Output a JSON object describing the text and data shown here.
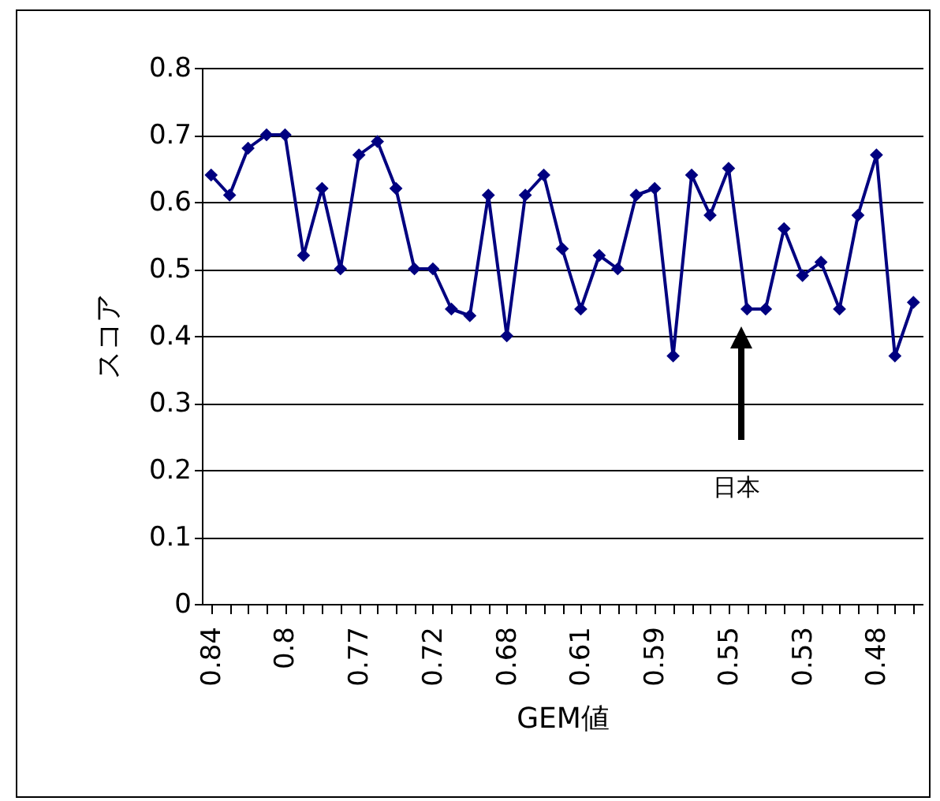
{
  "chart_data": {
    "type": "line",
    "xlabel": "GEM値",
    "ylabel": "スコア",
    "categories": [
      "0.84",
      null,
      null,
      null,
      "0.8",
      null,
      null,
      null,
      "0.77",
      null,
      null,
      null,
      "0.72",
      null,
      null,
      null,
      "0.68",
      null,
      null,
      null,
      "0.61",
      null,
      null,
      null,
      "0.59",
      null,
      null,
      null,
      "0.55",
      null,
      null,
      null,
      "0.53",
      null,
      null,
      null,
      "0.48",
      null,
      null
    ],
    "series": [
      {
        "color": "#000080",
        "values": [
          0.64,
          0.61,
          0.68,
          0.7,
          0.7,
          0.52,
          0.62,
          0.5,
          0.67,
          0.69,
          0.62,
          0.5,
          0.5,
          0.44,
          0.43,
          0.61,
          0.4,
          0.61,
          0.64,
          0.53,
          0.44,
          0.52,
          0.5,
          0.61,
          0.62,
          0.37,
          0.64,
          0.58,
          0.65,
          0.44,
          0.44,
          0.56,
          0.49,
          0.51,
          0.44,
          0.58,
          0.67,
          0.37,
          0.45
        ]
      }
    ],
    "ylim": [
      0,
      0.8
    ],
    "yticks": [
      0,
      0.1,
      0.2,
      0.3,
      0.4,
      0.5,
      0.6,
      0.7,
      0.8
    ],
    "grid": "y",
    "legend": false,
    "marker": "diamond",
    "line_style": "solid",
    "annotations": [
      "日本"
    ]
  }
}
